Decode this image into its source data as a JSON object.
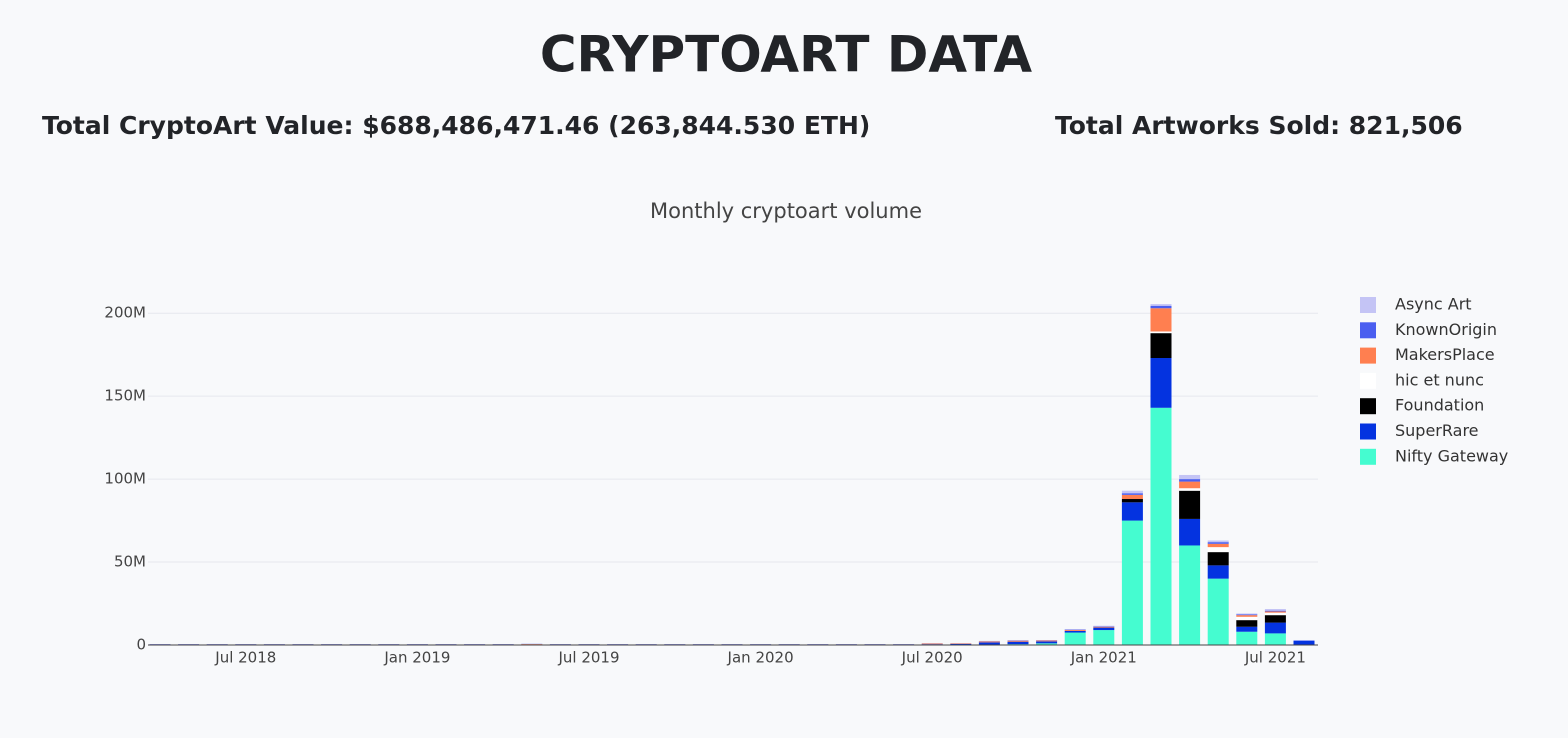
{
  "header": {
    "title": "CRYPTOART DATA",
    "stats": [
      "Total CryptoArt Value: $688,486,471.46 (263,844.530 ETH)",
      "Total Artworks Sold: 821,506"
    ]
  },
  "chart_data": {
    "type": "bar",
    "stacked": true,
    "title": "Monthly cryptoart volume",
    "x": [
      "2018-04",
      "2018-05",
      "2018-06",
      "2018-07",
      "2018-08",
      "2018-09",
      "2018-10",
      "2018-11",
      "2018-12",
      "2019-01",
      "2019-02",
      "2019-03",
      "2019-04",
      "2019-05",
      "2019-06",
      "2019-07",
      "2019-08",
      "2019-09",
      "2019-10",
      "2019-11",
      "2019-12",
      "2020-01",
      "2020-02",
      "2020-03",
      "2020-04",
      "2020-05",
      "2020-06",
      "2020-07",
      "2020-08",
      "2020-09",
      "2020-10",
      "2020-11",
      "2020-12",
      "2021-01",
      "2021-02",
      "2021-03",
      "2021-04",
      "2021-05",
      "2021-06",
      "2021-07",
      "2021-08"
    ],
    "xticks": [
      {
        "value": "2018-07",
        "label": "Jul 2018"
      },
      {
        "value": "2019-01",
        "label": "Jan 2019"
      },
      {
        "value": "2019-07",
        "label": "Jul 2019"
      },
      {
        "value": "2020-01",
        "label": "Jan 2020"
      },
      {
        "value": "2020-07",
        "label": "Jul 2020"
      },
      {
        "value": "2021-01",
        "label": "Jan 2021"
      },
      {
        "value": "2021-07",
        "label": "Jul 2021"
      }
    ],
    "ylim": [
      0,
      214000000
    ],
    "yticks": [
      0,
      {
        "value": 50000000,
        "label": "50M"
      },
      {
        "value": 100000000,
        "label": "100M"
      },
      {
        "value": 150000000,
        "label": "150M"
      },
      {
        "value": 200000000,
        "label": "200M"
      }
    ],
    "grid": true,
    "legend": "right",
    "series": [
      {
        "name": "Nifty Gateway",
        "color": "#45fcd0",
        "values": [
          0,
          0,
          0,
          0,
          0,
          0,
          0,
          0,
          0,
          0,
          0,
          0,
          0,
          0,
          0,
          0,
          0,
          0,
          0,
          0,
          0,
          0,
          0,
          0,
          0,
          0,
          0,
          0,
          0,
          300000,
          500000,
          1000000,
          7500000,
          9000000,
          75000000,
          143000000,
          60000000,
          40000000,
          8000000,
          7000000,
          0
        ]
      },
      {
        "name": "SuperRare",
        "color": "#0433e0",
        "values": [
          400000,
          400000,
          400000,
          400000,
          400000,
          400000,
          400000,
          400000,
          400000,
          400000,
          400000,
          400000,
          400000,
          400000,
          400000,
          400000,
          400000,
          400000,
          400000,
          400000,
          400000,
          400000,
          400000,
          400000,
          400000,
          400000,
          400000,
          500000,
          600000,
          1300000,
          1500000,
          1200000,
          1000000,
          1500000,
          11000000,
          30000000,
          16000000,
          8000000,
          3000000,
          6500000,
          2500000
        ]
      },
      {
        "name": "Foundation",
        "color": "#000000",
        "values": [
          0,
          0,
          0,
          0,
          0,
          0,
          0,
          0,
          0,
          0,
          0,
          0,
          0,
          0,
          0,
          0,
          0,
          0,
          0,
          0,
          0,
          0,
          0,
          0,
          0,
          0,
          0,
          0,
          0,
          0,
          0,
          0,
          0,
          0,
          2000000,
          15000000,
          17000000,
          8000000,
          4000000,
          4500000,
          0
        ]
      },
      {
        "name": "hic et nunc",
        "color": "#ffffff",
        "values": [
          0,
          0,
          0,
          0,
          0,
          0,
          0,
          0,
          0,
          0,
          0,
          0,
          0,
          0,
          0,
          0,
          0,
          0,
          0,
          0,
          0,
          0,
          0,
          0,
          0,
          0,
          0,
          0,
          0,
          0,
          0,
          0,
          0,
          0,
          0,
          1000000,
          1500000,
          3000000,
          2000000,
          1500000,
          0
        ]
      },
      {
        "name": "MakersPlace",
        "color": "#ff7f50",
        "values": [
          50000,
          50000,
          50000,
          50000,
          50000,
          50000,
          50000,
          50000,
          50000,
          50000,
          50000,
          50000,
          50000,
          200000,
          50000,
          50000,
          50000,
          50000,
          50000,
          50000,
          50000,
          50000,
          50000,
          50000,
          50000,
          50000,
          50000,
          400000,
          300000,
          500000,
          600000,
          500000,
          600000,
          500000,
          2500000,
          14000000,
          4000000,
          2000000,
          1000000,
          700000,
          0
        ]
      },
      {
        "name": "KnownOrigin",
        "color": "#4a5ef0",
        "values": [
          100000,
          100000,
          100000,
          100000,
          100000,
          100000,
          100000,
          100000,
          100000,
          100000,
          100000,
          100000,
          100000,
          100000,
          100000,
          100000,
          100000,
          100000,
          100000,
          100000,
          100000,
          100000,
          100000,
          100000,
          100000,
          100000,
          100000,
          100000,
          100000,
          200000,
          200000,
          200000,
          200000,
          300000,
          1000000,
          1500000,
          1500000,
          1000000,
          500000,
          500000,
          300000
        ]
      },
      {
        "name": "Async Art",
        "color": "#c4c4f5",
        "values": [
          0,
          0,
          0,
          0,
          0,
          0,
          0,
          0,
          0,
          0,
          0,
          0,
          0,
          0,
          0,
          0,
          0,
          0,
          0,
          0,
          0,
          0,
          0,
          0,
          0,
          0,
          0,
          0,
          0,
          200000,
          200000,
          100000,
          300000,
          300000,
          1500000,
          1000000,
          2500000,
          1000000,
          500000,
          1000000,
          0
        ]
      }
    ]
  }
}
